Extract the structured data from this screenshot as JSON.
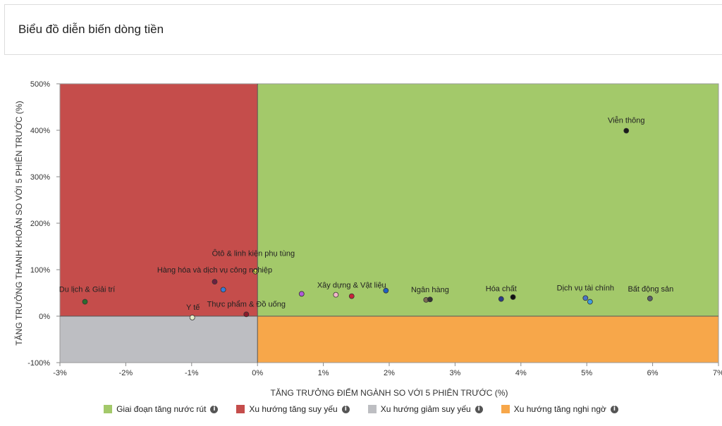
{
  "header": {
    "title": "Biểu đồ diễn biến dòng tiền"
  },
  "chart_data": {
    "type": "scatter",
    "title": "",
    "xlabel": "TĂNG TRƯỞNG ĐIỂM NGÀNH SO VỚI 5 PHIÊN TRƯỚC (%)",
    "ylabel": "TĂNG TRƯỞNG THANH KHOẢN SO VỚI 5 PHIÊN TRƯỚC (%)",
    "xlim": [
      -3,
      7
    ],
    "ylim": [
      -100,
      500
    ],
    "xticks": [
      -3,
      -2,
      -1,
      0,
      1,
      2,
      3,
      4,
      5,
      6,
      7
    ],
    "xtick_labels": [
      "-3%",
      "-2%",
      "-1%",
      "0%",
      "1%",
      "2%",
      "3%",
      "4%",
      "5%",
      "6%",
      "7%"
    ],
    "yticks": [
      -100,
      0,
      100,
      200,
      300,
      400,
      500
    ],
    "ytick_labels": [
      "-100%",
      "0%",
      "100%",
      "200%",
      "300%",
      "400%",
      "500%"
    ],
    "grid": false,
    "legend_position": "bottom",
    "quadrants": [
      {
        "name": "Giai đoạn tăng nước rút",
        "color": "#a3c96a",
        "x_range": [
          0,
          7
        ],
        "y_range": [
          0,
          500
        ]
      },
      {
        "name": "Xu hướng tăng suy yếu",
        "color": "#c54d4b",
        "x_range": [
          -3,
          0
        ],
        "y_range": [
          0,
          500
        ]
      },
      {
        "name": "Xu hướng giảm suy yếu",
        "color": "#bdbec2",
        "x_range": [
          -3,
          0
        ],
        "y_range": [
          -100,
          0
        ]
      },
      {
        "name": "Xu hướng tăng nghi ngờ",
        "color": "#f7a74a",
        "x_range": [
          0,
          7
        ],
        "y_range": [
          -100,
          0
        ]
      }
    ],
    "points": [
      {
        "x": 5.6,
        "y": 399,
        "color": "#1a1a1a"
      },
      {
        "x": -2.62,
        "y": 31,
        "color": "#2e6b2e"
      },
      {
        "x": -0.65,
        "y": 74,
        "color": "#6b2040"
      },
      {
        "x": -0.52,
        "y": 57,
        "color": "#3a7bd5"
      },
      {
        "x": -0.03,
        "y": 96,
        "color": "#e8e055"
      },
      {
        "x": -0.99,
        "y": -3,
        "color": "#e6efc8"
      },
      {
        "x": -0.17,
        "y": 4,
        "color": "#8b1a2a"
      },
      {
        "x": 0.67,
        "y": 48,
        "color": "#b05ad8"
      },
      {
        "x": 1.19,
        "y": 46,
        "color": "#f3b6c8"
      },
      {
        "x": 1.43,
        "y": 43,
        "color": "#c8223a"
      },
      {
        "x": 1.95,
        "y": 55,
        "color": "#1f5fc4"
      },
      {
        "x": 2.56,
        "y": 35,
        "color": "#7a6a52"
      },
      {
        "x": 2.62,
        "y": 36,
        "color": "#333333"
      },
      {
        "x": 3.7,
        "y": 37,
        "color": "#2a3c8a"
      },
      {
        "x": 3.88,
        "y": 41,
        "color": "#111111"
      },
      {
        "x": 4.98,
        "y": 39,
        "color": "#4a74c9"
      },
      {
        "x": 5.05,
        "y": 31,
        "color": "#3fa0e0"
      },
      {
        "x": 5.96,
        "y": 38,
        "color": "#5a5f6a"
      }
    ],
    "labels": [
      {
        "text": "Viễn thông",
        "x": 5.6,
        "y": 399
      },
      {
        "text": "Du lịch & Giải trí",
        "x": -2.62,
        "y": 31
      },
      {
        "text": "Hàng hóa và dịch vụ công nghiệp",
        "x": -0.65,
        "y": 74
      },
      {
        "text": "Ôtô & linh kiện phụ tùng",
        "x": -0.03,
        "y": 96
      },
      {
        "text": "Y tế",
        "x": -0.99,
        "y": -3
      },
      {
        "text": "Thực phẩm & Đồ uống",
        "x": -0.17,
        "y": 4
      },
      {
        "text": "Xây dựng & Vật liệu",
        "x": 1.43,
        "y": 43
      },
      {
        "text": "Ngân hàng",
        "x": 2.62,
        "y": 36
      },
      {
        "text": "Hóa chất",
        "x": 3.7,
        "y": 37
      },
      {
        "text": "Dịch vụ tài chính",
        "x": 4.98,
        "y": 39
      },
      {
        "text": "Bất động sản",
        "x": 5.96,
        "y": 38
      }
    ]
  }
}
